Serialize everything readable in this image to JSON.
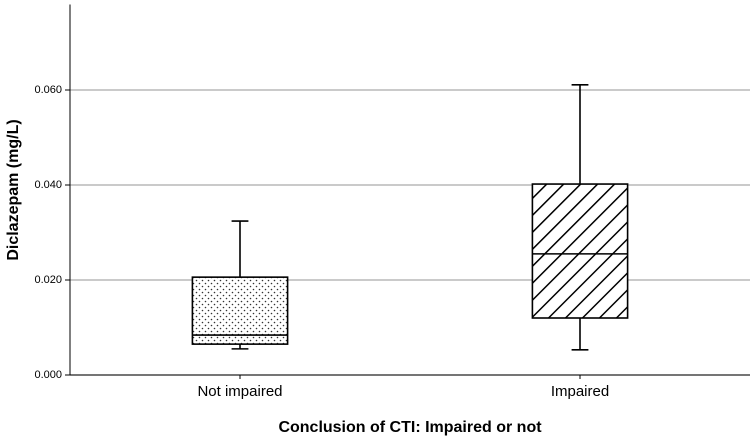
{
  "chart_data": {
    "type": "box",
    "ylabel": "Diclazepam (mg/L)",
    "xlabel": "Conclusion of CTI: Impaired or not",
    "categories": [
      "Not impaired",
      "Impaired"
    ],
    "boxes": [
      {
        "min": 0.0055,
        "q1": 0.0065,
        "median": 0.0084,
        "q3": 0.0206,
        "max": 0.0324
      },
      {
        "min": 0.0053,
        "q1": 0.012,
        "median": 0.0255,
        "q3": 0.0402,
        "max": 0.0611
      }
    ],
    "patterns": [
      "dots",
      "diagonal"
    ],
    "color": "#000000",
    "ylim": [
      0,
      0.078
    ],
    "yticks": [
      {
        "value": 0,
        "label": "0.000"
      },
      {
        "value": 0.02,
        "label": "0.020"
      },
      {
        "value": 0.04,
        "label": "0.040"
      },
      {
        "value": 0.06,
        "label": "0.060"
      }
    ],
    "grid": true
  }
}
